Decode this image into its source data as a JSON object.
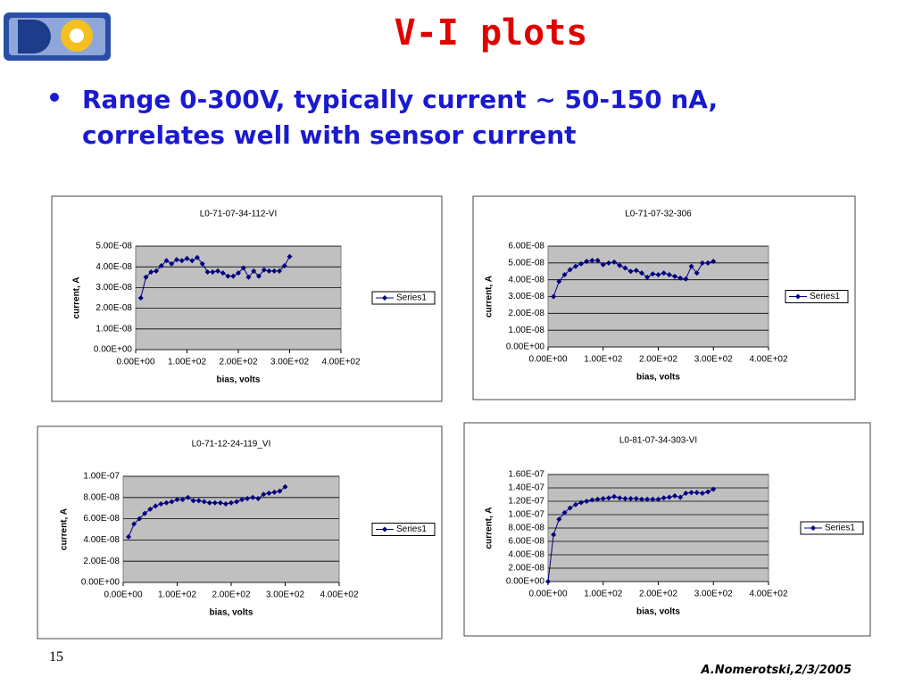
{
  "slide": {
    "title": "V-I plots",
    "bullet": "Range 0-300V, typically current ~ 50-150 nA, correlates well with sensor current",
    "page_number": "15",
    "footer": "A.Nomerotski,2/3/2005"
  },
  "chart_data": [
    {
      "type": "line",
      "title": "L0-71-07-34-112-VI",
      "xlabel": "bias, volts",
      "ylabel": "current, A",
      "grid": true,
      "legend": "right",
      "x": [
        10,
        20,
        30,
        40,
        50,
        60,
        70,
        80,
        90,
        100,
        110,
        120,
        130,
        140,
        150,
        160,
        170,
        180,
        190,
        200,
        210,
        220,
        230,
        240,
        250,
        260,
        270,
        280,
        290,
        300
      ],
      "series": [
        {
          "name": "Series1",
          "color": "#000080",
          "values": [
            2.5e-08,
            3.5e-08,
            3.75e-08,
            3.8e-08,
            4.05e-08,
            4.3e-08,
            4.15e-08,
            4.35e-08,
            4.3e-08,
            4.4e-08,
            4.3e-08,
            4.45e-08,
            4.15e-08,
            3.75e-08,
            3.75e-08,
            3.8e-08,
            3.7e-08,
            3.55e-08,
            3.55e-08,
            3.7e-08,
            3.95e-08,
            3.5e-08,
            3.8e-08,
            3.55e-08,
            3.85e-08,
            3.8e-08,
            3.8e-08,
            3.8e-08,
            4.05e-08,
            4.5e-08
          ]
        }
      ],
      "xlim": [
        0,
        400
      ],
      "xticks": [
        {
          "value": 0,
          "label": "0.00E+00"
        },
        {
          "value": 100,
          "label": "1.00E+02"
        },
        {
          "value": 200,
          "label": "2.00E+02"
        },
        {
          "value": 300,
          "label": "3.00E+02"
        },
        {
          "value": 400,
          "label": "4.00E+02"
        }
      ],
      "ylim": [
        0,
        5e-08
      ],
      "yticks": [
        {
          "value": 0,
          "label": "0.00E+00"
        },
        {
          "value": 1e-08,
          "label": "1.00E-08"
        },
        {
          "value": 2e-08,
          "label": "2.00E-08"
        },
        {
          "value": 3e-08,
          "label": "3.00E-08"
        },
        {
          "value": 4e-08,
          "label": "4.00E-08"
        },
        {
          "value": 5e-08,
          "label": "5.00E-08"
        }
      ]
    },
    {
      "type": "line",
      "title": "L0-71-07-32-306",
      "xlabel": "bias, volts",
      "ylabel": "current, A",
      "grid": true,
      "legend": "right",
      "x": [
        10,
        20,
        30,
        40,
        50,
        60,
        70,
        80,
        90,
        100,
        110,
        120,
        130,
        140,
        150,
        160,
        170,
        180,
        190,
        200,
        210,
        220,
        230,
        240,
        250,
        260,
        270,
        280,
        290,
        300
      ],
      "series": [
        {
          "name": "Series1",
          "color": "#000080",
          "values": [
            3e-08,
            3.9e-08,
            4.3e-08,
            4.6e-08,
            4.8e-08,
            4.95e-08,
            5.1e-08,
            5.15e-08,
            5.15e-08,
            4.9e-08,
            5e-08,
            5.05e-08,
            4.85e-08,
            4.7e-08,
            4.5e-08,
            4.55e-08,
            4.4e-08,
            4.15e-08,
            4.35e-08,
            4.3e-08,
            4.4e-08,
            4.3e-08,
            4.2e-08,
            4.1e-08,
            4.05e-08,
            4.8e-08,
            4.4e-08,
            5e-08,
            5e-08,
            5.1e-08
          ]
        }
      ],
      "xlim": [
        0,
        400
      ],
      "xticks": [
        {
          "value": 0,
          "label": "0.00E+00"
        },
        {
          "value": 100,
          "label": "1.00E+02"
        },
        {
          "value": 200,
          "label": "2.00E+02"
        },
        {
          "value": 300,
          "label": "3.00E+02"
        },
        {
          "value": 400,
          "label": "4.00E+02"
        }
      ],
      "ylim": [
        0,
        6e-08
      ],
      "yticks": [
        {
          "value": 0,
          "label": "0.00E+00"
        },
        {
          "value": 1e-08,
          "label": "1.00E-08"
        },
        {
          "value": 2e-08,
          "label": "2.00E-08"
        },
        {
          "value": 3e-08,
          "label": "3.00E-08"
        },
        {
          "value": 4e-08,
          "label": "4.00E-08"
        },
        {
          "value": 5e-08,
          "label": "5.00E-08"
        },
        {
          "value": 6e-08,
          "label": "6.00E-08"
        }
      ]
    },
    {
      "type": "line",
      "title": "L0-71-12-24-119_VI",
      "xlabel": "bias, volts",
      "ylabel": "current, A",
      "grid": true,
      "legend": "right",
      "x": [
        10,
        20,
        30,
        40,
        50,
        60,
        70,
        80,
        90,
        100,
        110,
        120,
        130,
        140,
        150,
        160,
        170,
        180,
        190,
        200,
        210,
        220,
        230,
        240,
        250,
        260,
        270,
        280,
        290,
        300
      ],
      "series": [
        {
          "name": "Series1",
          "color": "#000080",
          "values": [
            4.3e-08,
            5.5e-08,
            6e-08,
            6.5e-08,
            6.9e-08,
            7.2e-08,
            7.4e-08,
            7.5e-08,
            7.6e-08,
            7.8e-08,
            7.8e-08,
            8e-08,
            7.7e-08,
            7.7e-08,
            7.6e-08,
            7.5e-08,
            7.5e-08,
            7.5e-08,
            7.4e-08,
            7.5e-08,
            7.6e-08,
            7.8e-08,
            7.9e-08,
            8e-08,
            7.9e-08,
            8.3e-08,
            8.4e-08,
            8.5e-08,
            8.6e-08,
            9e-08
          ]
        }
      ],
      "xlim": [
        0,
        400
      ],
      "xticks": [
        {
          "value": 0,
          "label": "0.00E+00"
        },
        {
          "value": 100,
          "label": "1.00E+02"
        },
        {
          "value": 200,
          "label": "2.00E+02"
        },
        {
          "value": 300,
          "label": "3.00E+02"
        },
        {
          "value": 400,
          "label": "4.00E+02"
        }
      ],
      "ylim": [
        0,
        1e-07
      ],
      "yticks": [
        {
          "value": 0,
          "label": "0.00E+00"
        },
        {
          "value": 2e-08,
          "label": "2.00E-08"
        },
        {
          "value": 4e-08,
          "label": "4.00E-08"
        },
        {
          "value": 6e-08,
          "label": "6.00E-08"
        },
        {
          "value": 8e-08,
          "label": "8.00E-08"
        },
        {
          "value": 1e-07,
          "label": "1.00E-07"
        }
      ]
    },
    {
      "type": "line",
      "title": "L0-81-07-34-303-VI",
      "xlabel": "bias, volts",
      "ylabel": "current, A",
      "grid": true,
      "legend": "right",
      "x": [
        0,
        10,
        20,
        30,
        40,
        50,
        60,
        70,
        80,
        90,
        100,
        110,
        120,
        130,
        140,
        150,
        160,
        170,
        180,
        190,
        200,
        210,
        220,
        230,
        240,
        250,
        260,
        270,
        280,
        290,
        300
      ],
      "series": [
        {
          "name": "Series1",
          "color": "#000080",
          "values": [
            0,
            7e-08,
            9.3e-08,
            1.03e-07,
            1.1e-07,
            1.15e-07,
            1.18e-07,
            1.2e-07,
            1.22e-07,
            1.23e-07,
            1.24e-07,
            1.25e-07,
            1.27e-07,
            1.25e-07,
            1.24e-07,
            1.24e-07,
            1.24e-07,
            1.23e-07,
            1.23e-07,
            1.23e-07,
            1.23e-07,
            1.25e-07,
            1.26e-07,
            1.28e-07,
            1.26e-07,
            1.32e-07,
            1.33e-07,
            1.33e-07,
            1.32e-07,
            1.34e-07,
            1.38e-07
          ]
        }
      ],
      "xlim": [
        0,
        400
      ],
      "xticks": [
        {
          "value": 0,
          "label": "0.00E+00"
        },
        {
          "value": 100,
          "label": "1.00E+02"
        },
        {
          "value": 200,
          "label": "2.00E+02"
        },
        {
          "value": 300,
          "label": "3.00E+02"
        },
        {
          "value": 400,
          "label": "4.00E+02"
        }
      ],
      "ylim": [
        0,
        1.6e-07
      ],
      "yticks": [
        {
          "value": 0,
          "label": "0.00E+00"
        },
        {
          "value": 2e-08,
          "label": "2.00E-08"
        },
        {
          "value": 4e-08,
          "label": "4.00E-08"
        },
        {
          "value": 6e-08,
          "label": "6.00E-08"
        },
        {
          "value": 8e-08,
          "label": "8.00E-08"
        },
        {
          "value": 1e-07,
          "label": "1.00E-07"
        },
        {
          "value": 1.2e-07,
          "label": "1.20E-07"
        },
        {
          "value": 1.4e-07,
          "label": "1.40E-07"
        },
        {
          "value": 1.6e-07,
          "label": "1.60E-07"
        }
      ]
    }
  ]
}
